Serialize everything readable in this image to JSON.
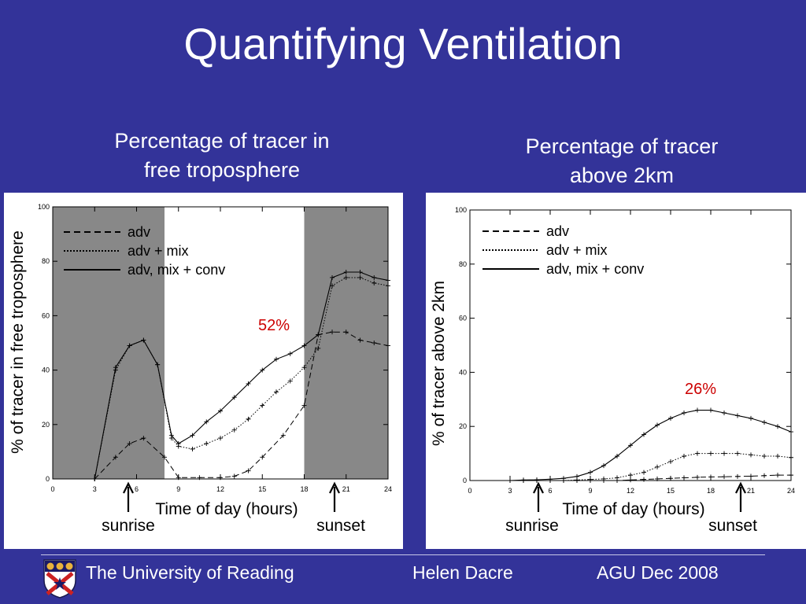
{
  "slide": {
    "title": "Quantifying Ventilation"
  },
  "panels": [
    {
      "title_lines": [
        "Percentage of tracer in",
        "free troposphere"
      ]
    },
    {
      "title_lines": [
        "Percentage of tracer",
        "above 2km"
      ]
    }
  ],
  "footer": {
    "organisation": "The University of Reading",
    "author": "Helen Dacre",
    "event": "AGU Dec 2008"
  },
  "chart_data": [
    {
      "type": "line",
      "title": "",
      "xlabel": "Time of day (hours)",
      "ylabel": "% of tracer in free troposphere",
      "xlim": [
        0,
        24
      ],
      "ylim": [
        0,
        100
      ],
      "x_ticks": [
        0,
        3,
        6,
        9,
        12,
        15,
        18,
        21,
        24
      ],
      "y_ticks": [
        0,
        20,
        40,
        60,
        80,
        100
      ],
      "shaded_night": [
        [
          0,
          8
        ],
        [
          18,
          24
        ]
      ],
      "shading_color": "#888888",
      "legend_position": "top-left",
      "series": [
        {
          "name": "adv",
          "style": "dashed",
          "x": [
            3,
            4.5,
            5.5,
            6.5,
            8,
            9,
            10.5,
            12,
            13,
            14,
            15,
            16.5,
            18,
            19,
            20,
            21,
            22,
            23,
            24
          ],
          "y": [
            0,
            8,
            13,
            15,
            8,
            0.5,
            0.5,
            0.5,
            1,
            3,
            8,
            16,
            27,
            53,
            54,
            54,
            51,
            50,
            49
          ]
        },
        {
          "name": "adv + mix",
          "style": "dotted",
          "x": [
            3,
            4.5,
            5.5,
            6.5,
            7.5,
            8.5,
            9,
            10,
            11,
            12,
            13,
            14,
            15,
            16,
            17,
            18,
            19,
            20,
            21,
            22,
            23,
            24
          ],
          "y": [
            0,
            40,
            49,
            51,
            42,
            15,
            12,
            11,
            13,
            15,
            18,
            22,
            27,
            32,
            36,
            41,
            48,
            71,
            74,
            74,
            72,
            71
          ]
        },
        {
          "name": "adv, mix + conv",
          "style": "solid",
          "x": [
            3,
            4.5,
            5.5,
            6.5,
            7.5,
            8.5,
            9,
            10,
            11,
            12,
            13,
            14,
            15,
            16,
            17,
            18,
            19,
            20,
            21,
            22,
            23,
            24
          ],
          "y": [
            0,
            41,
            49,
            51,
            42,
            16,
            13,
            16,
            21,
            25,
            30,
            35,
            40,
            44,
            46,
            49,
            53,
            74,
            76,
            76,
            74,
            73
          ]
        }
      ],
      "annotations": [
        {
          "text": "52%",
          "color": "#cc0000"
        },
        {
          "text": "sunrise",
          "x": 6,
          "arrow": true
        },
        {
          "text": "sunset",
          "x": 20,
          "arrow": true
        }
      ]
    },
    {
      "type": "line",
      "title": "",
      "xlabel": "Time of day (hours)",
      "ylabel": "% of tracer above 2km",
      "xlim": [
        0,
        24
      ],
      "ylim": [
        0,
        100
      ],
      "x_ticks": [
        0,
        3,
        6,
        9,
        12,
        15,
        18,
        21,
        24
      ],
      "y_ticks": [
        0,
        20,
        40,
        60,
        80,
        100
      ],
      "legend_position": "top-left",
      "series": [
        {
          "name": "adv",
          "style": "dashed",
          "x": [
            3,
            4,
            5,
            6,
            7,
            8,
            9,
            10,
            11,
            12,
            13,
            14,
            15,
            16,
            17,
            18,
            19,
            20,
            21,
            22,
            23,
            24
          ],
          "y": [
            0,
            0,
            0,
            0,
            0,
            0,
            0,
            0,
            0,
            0.2,
            0.4,
            0.6,
            0.8,
            1,
            1.2,
            1.3,
            1.4,
            1.5,
            1.6,
            1.8,
            2,
            2
          ]
        },
        {
          "name": "adv + mix",
          "style": "dotted",
          "x": [
            3,
            4,
            5,
            6,
            7,
            8,
            9,
            10,
            11,
            12,
            13,
            14,
            15,
            16,
            17,
            18,
            19,
            20,
            21,
            22,
            23,
            24
          ],
          "y": [
            0,
            0,
            0,
            0,
            0,
            0.2,
            0.4,
            0.6,
            1,
            2,
            3,
            5,
            7,
            9,
            10,
            10,
            10,
            10,
            9.5,
            9,
            9,
            8.5
          ]
        },
        {
          "name": "adv, mix + conv",
          "style": "solid",
          "x": [
            3,
            4,
            5,
            6,
            7,
            8,
            9,
            10,
            11,
            12,
            13,
            14,
            15,
            16,
            17,
            18,
            19,
            20,
            21,
            22,
            23,
            24
          ],
          "y": [
            0,
            0.2,
            0.3,
            0.5,
            0.8,
            1.5,
            3,
            5.5,
            9,
            13,
            17,
            20.5,
            23,
            25,
            26,
            26,
            25,
            24,
            23,
            21.5,
            20,
            18
          ]
        }
      ],
      "annotations": [
        {
          "text": "26%",
          "color": "#cc0000"
        },
        {
          "text": "sunrise",
          "x": 6,
          "arrow": true
        },
        {
          "text": "sunset",
          "x": 20,
          "arrow": true
        }
      ]
    }
  ]
}
